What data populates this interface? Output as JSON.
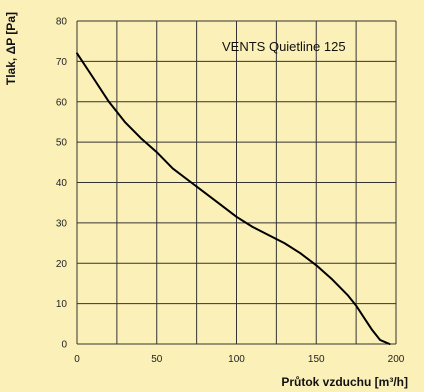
{
  "chart_data": {
    "type": "line",
    "title": "",
    "annotation": "VENTS Quietline 125",
    "xlabel": "Průtok vzduchu [m³/h]",
    "ylabel": "Tlak, ΔP [Pa]",
    "xlim": [
      0,
      200
    ],
    "ylim": [
      0,
      80
    ],
    "xticks": [
      0,
      50,
      100,
      150,
      200
    ],
    "yticks": [
      0,
      10,
      20,
      30,
      40,
      50,
      60,
      70,
      80
    ],
    "x_gridlines": [
      0,
      25,
      50,
      75,
      100,
      125,
      150,
      175,
      200
    ],
    "grid": true,
    "legend": "none",
    "colors": {
      "background": "#fbf1b8",
      "grid": "#333333",
      "line": "#000000"
    },
    "series": [
      {
        "x": [
          0,
          10,
          20,
          30,
          40,
          50,
          60,
          70,
          80,
          90,
          100,
          110,
          120,
          130,
          140,
          150,
          160,
          170,
          175,
          180,
          185,
          190,
          196
        ],
        "y": [
          72,
          66,
          60,
          55,
          51,
          47.5,
          43.5,
          40.5,
          37.5,
          34.5,
          31.5,
          29,
          27,
          25,
          22.5,
          19.5,
          16,
          12,
          9.5,
          6.5,
          3.5,
          1,
          0
        ]
      }
    ]
  }
}
